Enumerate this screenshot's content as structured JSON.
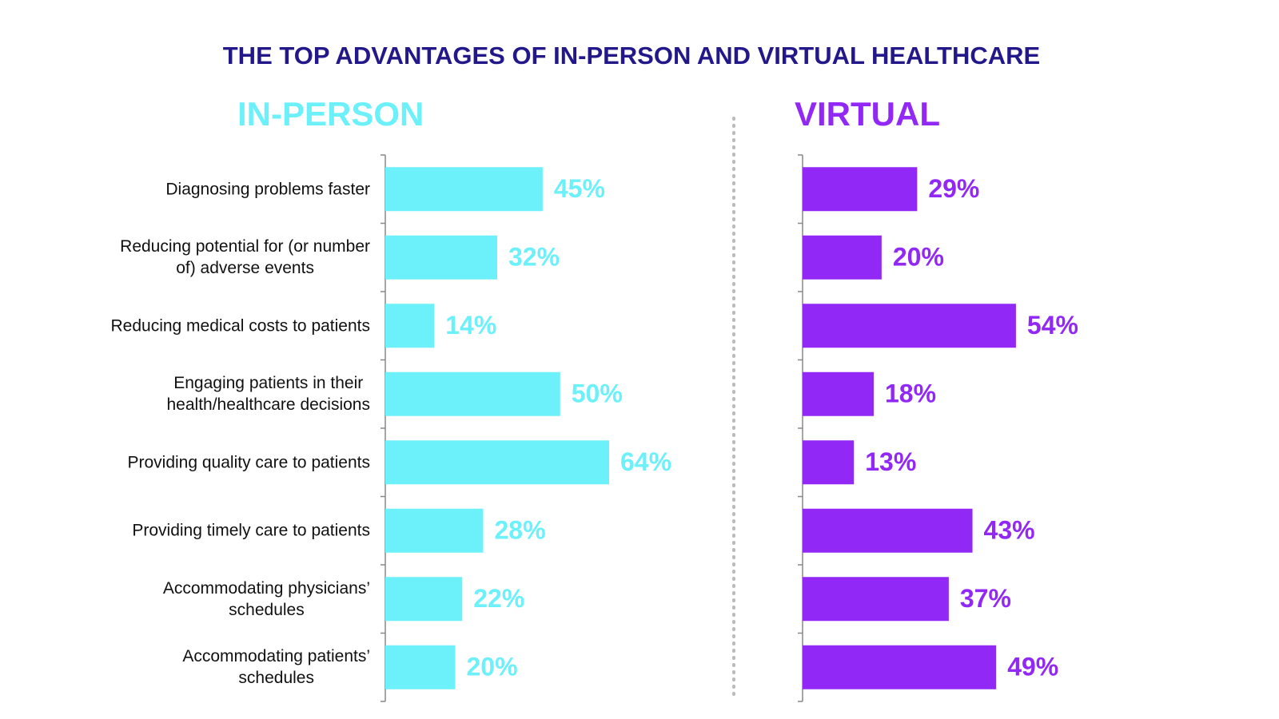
{
  "title": "THE TOP ADVANTAGES OF IN-PERSON AND VIRTUAL HEALTHCARE",
  "chart_data": [
    {
      "type": "bar",
      "orientation": "horizontal",
      "title": "IN-PERSON",
      "color": "#6cf0f9",
      "categories": [
        "Diagnosing problems faster",
        "Reducing potential for (or number\nof) adverse events",
        "Reducing medical costs to patients",
        "Engaging patients in their\nhealth/healthcare decisions",
        "Providing quality care to patients",
        "Providing timely care to patients",
        "Accommodating physicians’\nschedules",
        "Accommodating patients’\nschedules"
      ],
      "values": [
        45,
        32,
        14,
        50,
        64,
        28,
        22,
        20
      ],
      "value_labels": [
        "45%",
        "32%",
        "14%",
        "50%",
        "64%",
        "28%",
        "22%",
        "20%"
      ],
      "xlim": [
        0,
        80
      ]
    },
    {
      "type": "bar",
      "orientation": "horizontal",
      "title": "VIRTUAL",
      "color": "#9128f5",
      "values": [
        29,
        20,
        54,
        18,
        13,
        43,
        37,
        49
      ],
      "value_labels": [
        "29%",
        "20%",
        "54%",
        "18%",
        "13%",
        "43%",
        "37%",
        "49%"
      ],
      "xlim": [
        0,
        70
      ]
    }
  ]
}
